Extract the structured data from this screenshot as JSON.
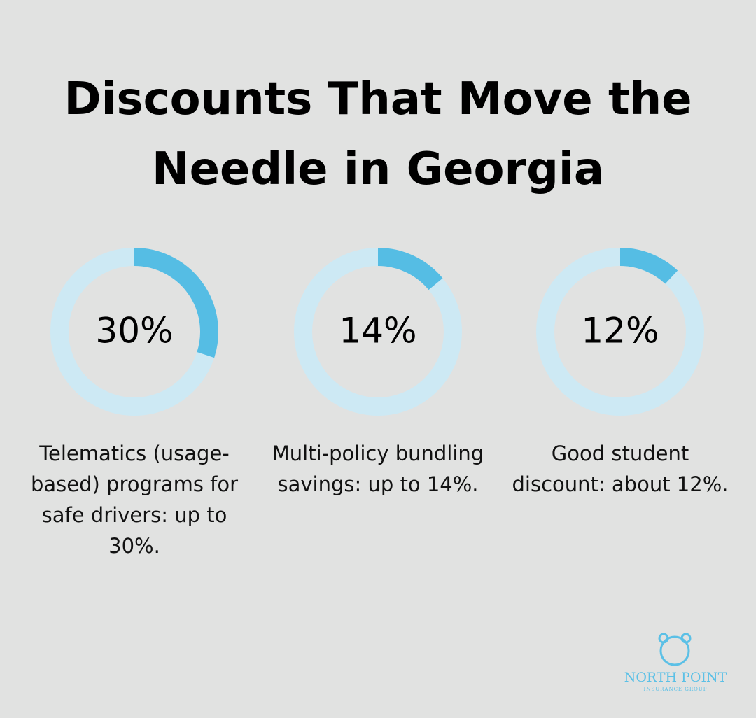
{
  "chart_data": {
    "type": "donut",
    "title": "Discounts That Move the Needle in Georgia",
    "categories": [
      "Telematics (usage-based) programs for safe drivers: up to 30%.",
      "Multi-policy bundling savings: up to 14%.",
      "Good student discount: about 12%."
    ],
    "values": [
      30,
      14,
      12
    ],
    "value_labels": [
      "30%",
      "14%",
      "12%"
    ],
    "color": "#55bde4",
    "track_color": "#cde9f4"
  },
  "logo": {
    "name": "NORTH POINT",
    "tagline": "INSURANCE GROUP"
  }
}
